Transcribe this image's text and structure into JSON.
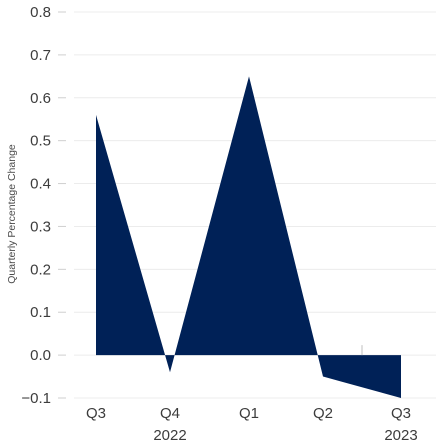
{
  "chart_data": {
    "type": "area",
    "title": "",
    "xlabel": "",
    "ylabel": "Quarterly Percentage Change",
    "ylim": [
      -0.1,
      0.8
    ],
    "yticks": [
      -0.1,
      0.0,
      0.1,
      0.2,
      0.3,
      0.4,
      0.5,
      0.6,
      0.7,
      0.8
    ],
    "ytick_labels": [
      "−0.1",
      "0.0",
      "0.1",
      "0.2",
      "0.3",
      "0.4",
      "0.5",
      "0.6",
      "0.7",
      "0.8"
    ],
    "categories": [
      "Q3",
      "Q4",
      "Q1",
      "Q2",
      "Q3"
    ],
    "year_labels": [
      {
        "text": "2022",
        "under": 1
      },
      {
        "text": "2023",
        "under": 4
      }
    ],
    "values": [
      0.56,
      -0.04,
      0.65,
      -0.05,
      -0.1
    ],
    "grid": true,
    "fill_color": "#002157"
  }
}
